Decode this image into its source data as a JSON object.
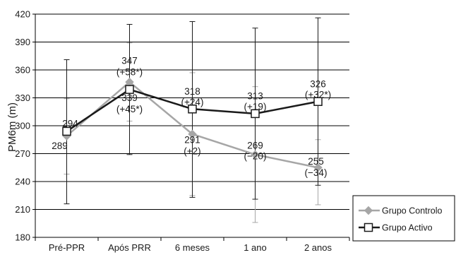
{
  "chart_data": {
    "type": "line",
    "ylabel": "PM6m (m)",
    "ylim": [
      180,
      420
    ],
    "yticks": [
      180,
      210,
      240,
      270,
      300,
      330,
      360,
      390,
      420
    ],
    "grid": "horizontal",
    "legend_position": "right",
    "categories": [
      "Pré-PPR",
      "Após PRR",
      "6 meses",
      "1 ano",
      "2 anos"
    ],
    "series": [
      {
        "name": "Grupo Controlo",
        "color": "#a6a6a6",
        "marker": "diamond",
        "values": [
          289,
          347,
          291,
          269,
          255
        ],
        "error_low": [
          248,
          305,
          225,
          196,
          215
        ],
        "error_high": [
          329,
          389,
          357,
          342,
          285
        ],
        "labels": [
          "289",
          "347",
          "291",
          "269",
          "255"
        ],
        "change_labels": [
          "",
          "(+58*)",
          "(+2)",
          "(−20)",
          "(−34)"
        ]
      },
      {
        "name": "Grupo Activo",
        "color": "#1a1a1a",
        "marker": "square",
        "values": [
          294,
          339,
          318,
          313,
          326
        ],
        "error_low": [
          216,
          269,
          223,
          221,
          236
        ],
        "error_high": [
          371,
          409,
          412,
          405,
          416
        ],
        "labels": [
          "294",
          "339",
          "318",
          "313",
          "326"
        ],
        "change_labels": [
          "",
          "(+45*)",
          "(+24)",
          "(+19)",
          "(+32*)"
        ]
      }
    ]
  }
}
